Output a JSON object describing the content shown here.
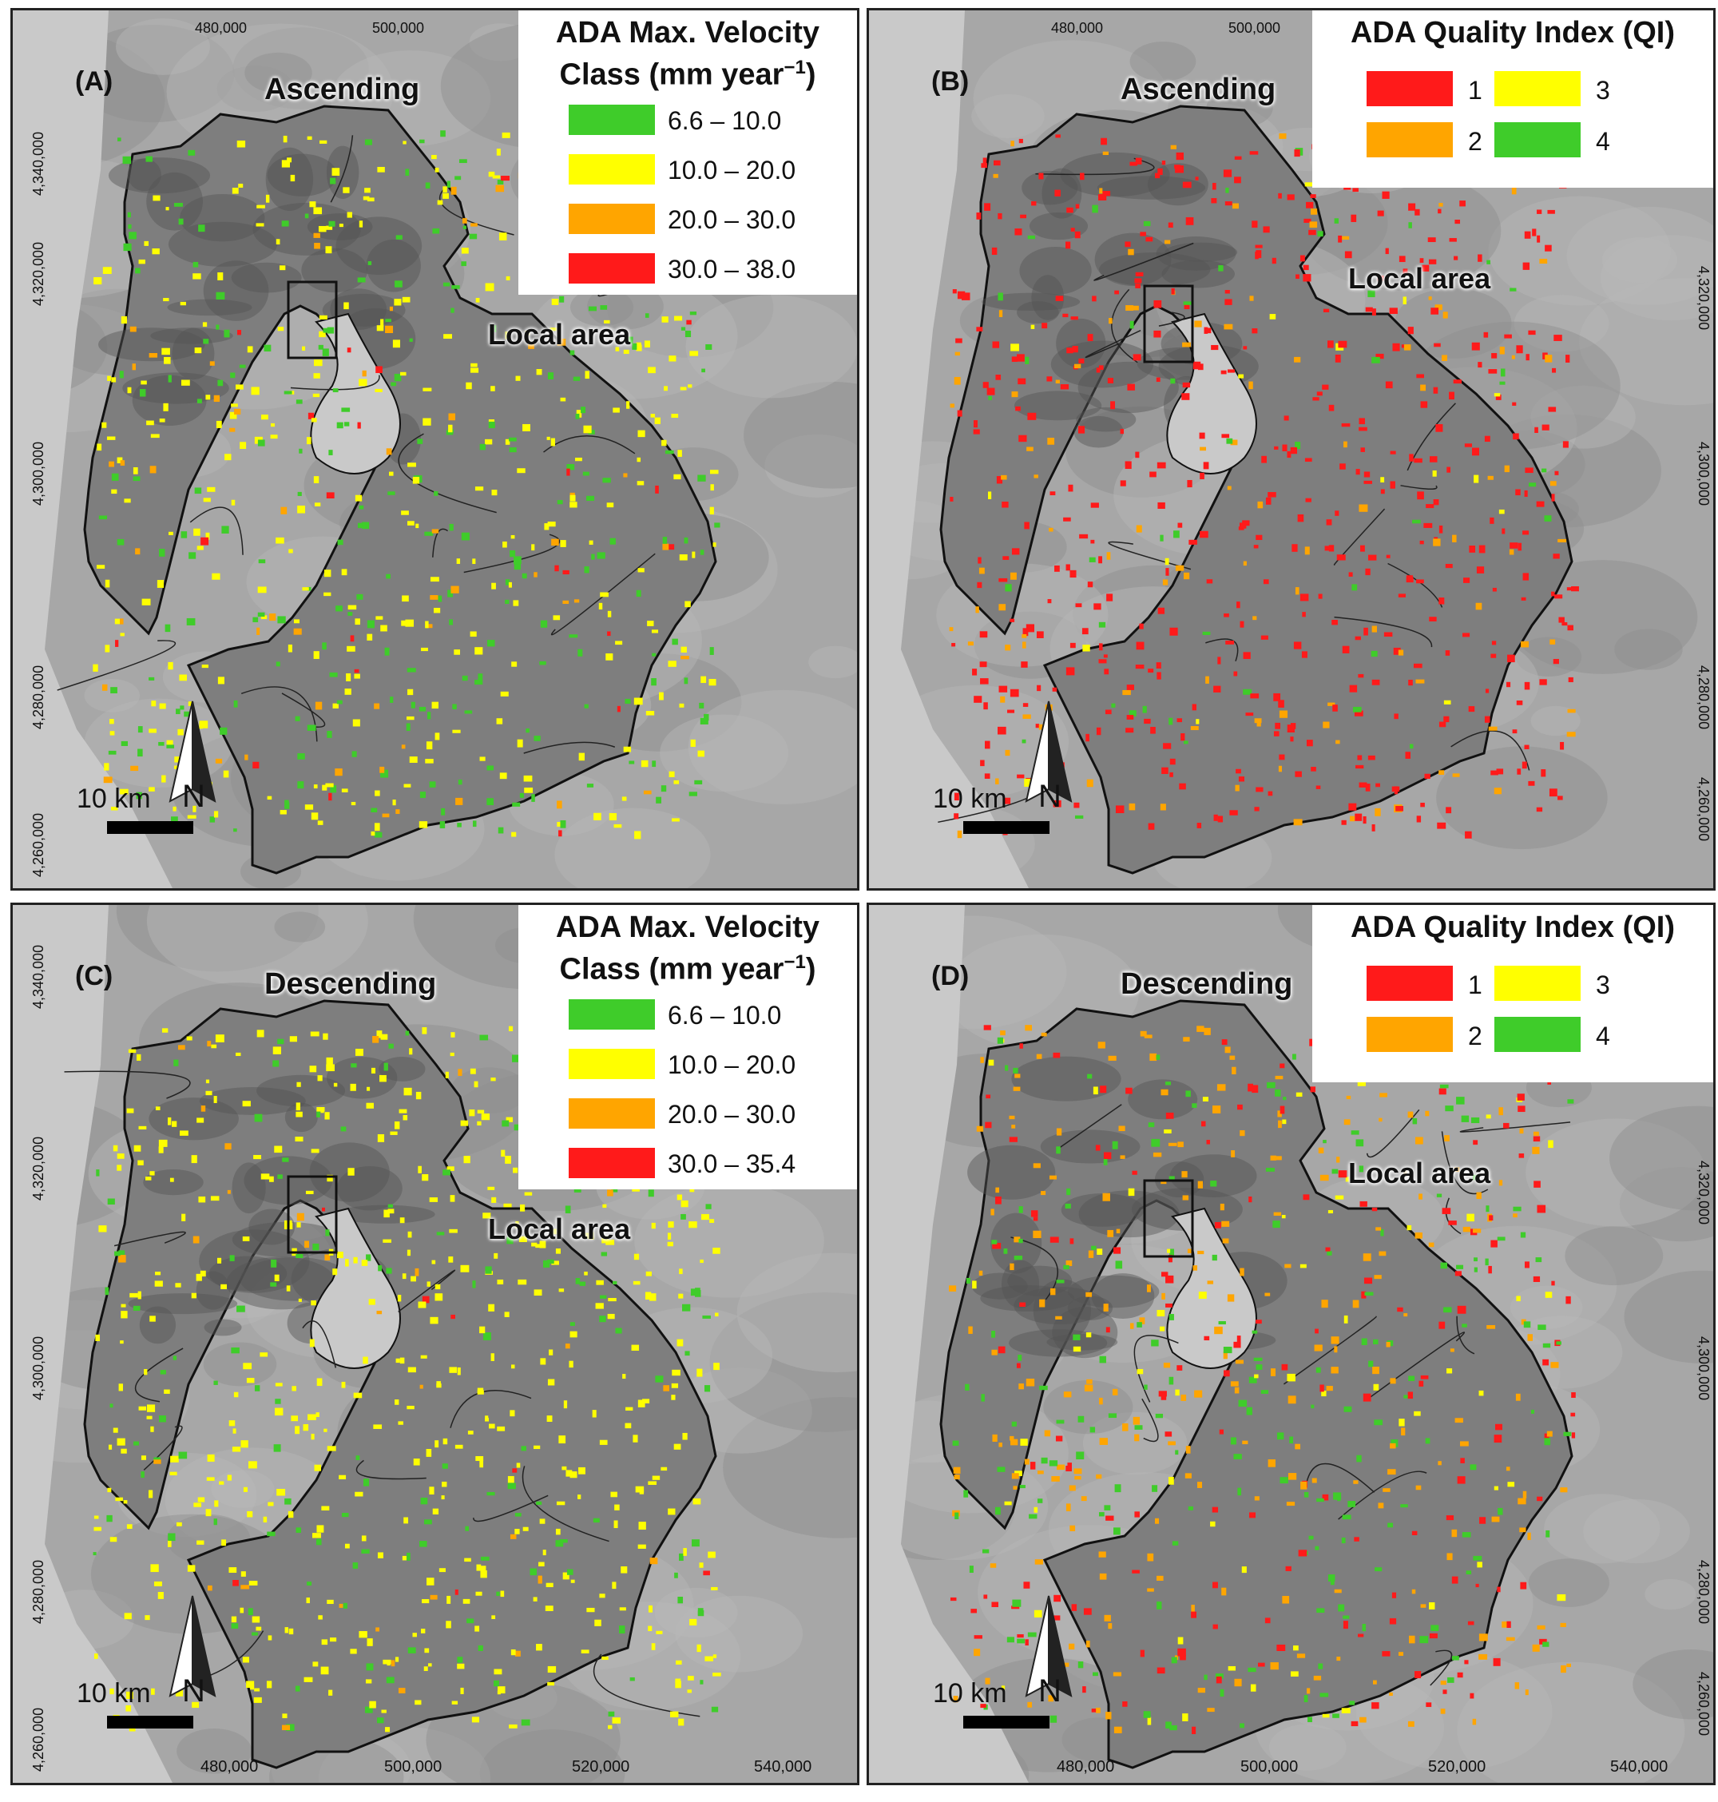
{
  "panels": [
    {
      "id": "A",
      "label": "(A)",
      "orbit": "Ascending",
      "legend_type": "velocity",
      "legend": {
        "title_line1": "ADA Max. Velocity",
        "title_line2": "Class (mm year",
        "title_sup": "−1",
        "title_end": ")",
        "classes": [
          {
            "label": "6.6 – 10.0",
            "color": "#3fcc2a"
          },
          {
            "label": "10.0 – 20.0",
            "color": "#ffff00"
          },
          {
            "label": "20.0 – 30.0",
            "color": "#ffa500"
          },
          {
            "label": "30.0 – 38.0",
            "color": "#ff1a1a"
          }
        ]
      },
      "local_area": "Local area",
      "ticks_top": [
        "480,000",
        "500,000"
      ],
      "ticks_left": [
        "4,340,000",
        "4,320,000",
        "4,300,000",
        "4,280,000",
        "4,260,000"
      ],
      "ticks_right": [],
      "ticks_bottom": [],
      "scale": "10 km",
      "north": "N"
    },
    {
      "id": "B",
      "label": "(B)",
      "orbit": "Ascending",
      "legend_type": "qi",
      "legend": {
        "title": "ADA Quality Index (QI)",
        "classes": [
          {
            "label": "1",
            "color": "#ff1a1a"
          },
          {
            "label": "2",
            "color": "#ffa500"
          },
          {
            "label": "3",
            "color": "#ffff00"
          },
          {
            "label": "4",
            "color": "#3fcc2a"
          }
        ]
      },
      "local_area": "Local area",
      "ticks_top": [
        "480,000",
        "500,000"
      ],
      "ticks_left": [],
      "ticks_right": [
        "4,320,000",
        "4,300,000",
        "4,280,000",
        "4,260,000"
      ],
      "ticks_bottom": [],
      "scale": "10 km",
      "north": "N"
    },
    {
      "id": "C",
      "label": "(C)",
      "orbit": "Descending",
      "legend_type": "velocity",
      "legend": {
        "title_line1": "ADA Max. Velocity",
        "title_line2": "Class (mm year",
        "title_sup": "−1",
        "title_end": ")",
        "classes": [
          {
            "label": "6.6 – 10.0",
            "color": "#3fcc2a"
          },
          {
            "label": "10.0 – 20.0",
            "color": "#ffff00"
          },
          {
            "label": "20.0 – 30.0",
            "color": "#ffa500"
          },
          {
            "label": "30.0 – 35.4",
            "color": "#ff1a1a"
          }
        ]
      },
      "local_area": "Local area",
      "ticks_top": [],
      "ticks_left": [
        "4,340,000",
        "4,320,000",
        "4,300,000",
        "4,280,000",
        "4,260,000"
      ],
      "ticks_right": [],
      "ticks_bottom": [
        "480,000",
        "500,000",
        "520,000",
        "540,000"
      ],
      "scale": "10 km",
      "north": "N"
    },
    {
      "id": "D",
      "label": "(D)",
      "orbit": "Descending",
      "legend_type": "qi",
      "legend": {
        "title": "ADA Quality Index (QI)",
        "classes": [
          {
            "label": "1",
            "color": "#ff1a1a"
          },
          {
            "label": "2",
            "color": "#ffa500"
          },
          {
            "label": "3",
            "color": "#ffff00"
          },
          {
            "label": "4",
            "color": "#3fcc2a"
          }
        ]
      },
      "local_area": "Local area",
      "ticks_top": [],
      "ticks_left": [],
      "ticks_right": [
        "4,320,000",
        "4,300,000",
        "4,280,000",
        "4,260,000"
      ],
      "ticks_bottom": [
        "480,000",
        "500,000",
        "520,000",
        "540,000"
      ],
      "scale": "10 km",
      "north": "N"
    }
  ]
}
